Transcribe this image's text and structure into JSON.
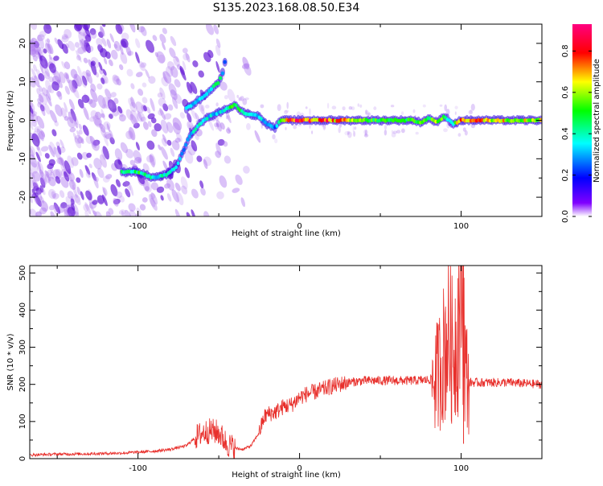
{
  "title": "S135.2023.168.08.50.E34",
  "colors": {
    "snr_line": "#e8302c",
    "ridge_low": "#3a10e0",
    "ridge_mid": "#00e0b0",
    "ridge_high": "#ff2a2a",
    "noise": "#b07cf0",
    "noise_dark": "#6a1fd8"
  },
  "chart_data": [
    {
      "type": "heatmap",
      "title": "S135.2023.168.08.50.E34",
      "xlabel": "Height of straight line (km)",
      "ylabel": "Frequency (Hz)",
      "xlim": [
        -167,
        150
      ],
      "ylim": [
        -25,
        25
      ],
      "x_ticks": [
        -100,
        0,
        100
      ],
      "y_ticks": [
        -20,
        -10,
        0,
        10,
        20
      ],
      "colorbar": {
        "label": "Normalized spectral amplitude",
        "range": [
          0,
          0.93
        ],
        "ticks": [
          0.0,
          0.2,
          0.4,
          0.6,
          0.8
        ],
        "colors": [
          "#ffffff",
          "#8000ff",
          "#0000ff",
          "#00ffff",
          "#00ff00",
          "#ffff00",
          "#ff0000",
          "#ff0080"
        ]
      },
      "ridge": {
        "x": [
          -110,
          -100,
          -90,
          -82,
          -76,
          -72,
          -68,
          -62,
          -56,
          -50,
          -45,
          -40,
          -35,
          -30,
          -25,
          -20,
          -15,
          -12,
          -8,
          0,
          20,
          40,
          60,
          70,
          75,
          80,
          85,
          90,
          95,
          100,
          120,
          150
        ],
        "freq": [
          -13.5,
          -13.5,
          -15,
          -14,
          -12,
          -8,
          -4,
          -1,
          1,
          2,
          3,
          4,
          2,
          1.5,
          1,
          -1,
          -2,
          0,
          0,
          0,
          0,
          0,
          0,
          0,
          -0.5,
          0.5,
          -0.5,
          1,
          -1,
          0,
          0,
          0
        ],
        "amplitude": [
          0.45,
          0.55,
          0.4,
          0.45,
          0.35,
          0.3,
          0.35,
          0.45,
          0.4,
          0.35,
          0.5,
          0.6,
          0.55,
          0.45,
          0.4,
          0.35,
          0.3,
          0.55,
          0.85,
          0.9,
          0.85,
          0.6,
          0.55,
          0.6,
          0.65,
          0.55,
          0.7,
          0.5,
          0.45,
          0.9,
          0.75,
          0.7
        ]
      },
      "branch": {
        "x": [
          -70,
          -65,
          -60,
          -55,
          -50,
          -47,
          -45
        ],
        "freq": [
          3,
          4.5,
          6,
          8,
          10,
          13,
          18
        ],
        "amplitude": [
          0.35,
          0.4,
          0.4,
          0.45,
          0.55,
          0.3,
          0.2
        ]
      }
    },
    {
      "type": "line",
      "xlabel": "Height of straight line (km)",
      "ylabel": "SNR (10 * v/v)",
      "xlim": [
        -167,
        150
      ],
      "ylim": [
        0,
        520
      ],
      "x_ticks": [
        -100,
        0,
        100
      ],
      "y_ticks": [
        0,
        100,
        200,
        300,
        400,
        500
      ],
      "x": [
        -167,
        -150,
        -130,
        -110,
        -90,
        -80,
        -70,
        -65,
        -60,
        -55,
        -50,
        -45,
        -40,
        -35,
        -30,
        -25,
        -22,
        -20,
        -15,
        -10,
        -5,
        0,
        5,
        10,
        20,
        30,
        40,
        50,
        60,
        70,
        80,
        85,
        88,
        90,
        92,
        95,
        98,
        100,
        101,
        102,
        103,
        105,
        110,
        120,
        130,
        140,
        150
      ],
      "y": [
        10,
        12,
        13,
        15,
        20,
        25,
        35,
        55,
        70,
        75,
        70,
        40,
        28,
        25,
        35,
        70,
        110,
        120,
        125,
        140,
        145,
        165,
        175,
        180,
        195,
        205,
        210,
        210,
        210,
        210,
        212,
        220,
        260,
        300,
        340,
        280,
        360,
        480,
        510,
        300,
        230,
        205,
        205,
        205,
        205,
        202,
        200
      ]
    }
  ]
}
